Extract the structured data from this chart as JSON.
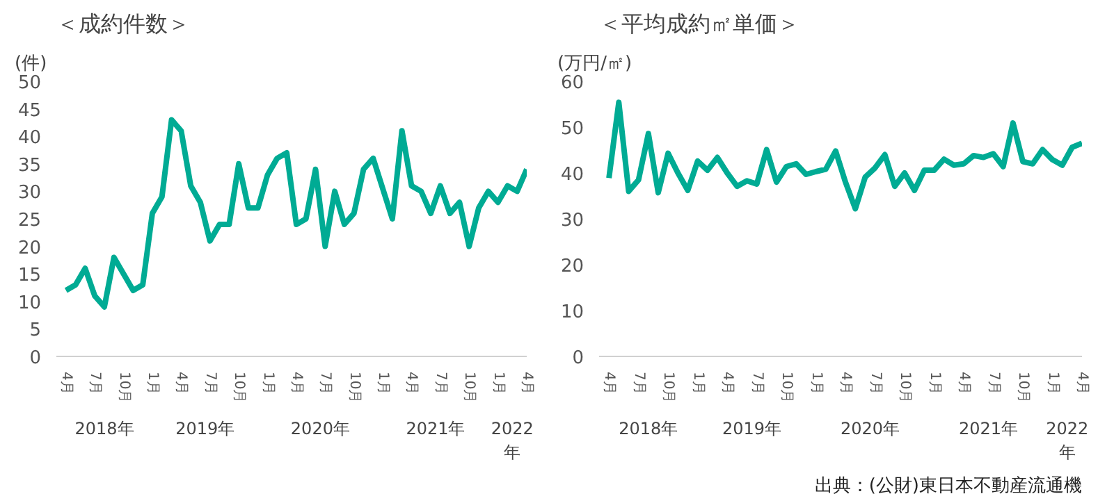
{
  "chart_data": [
    {
      "type": "line",
      "title": "＜成約件数＞",
      "ylabel": "(件)",
      "x": [
        "2018-04",
        "2018-05",
        "2018-06",
        "2018-07",
        "2018-08",
        "2018-09",
        "2018-10",
        "2018-11",
        "2018-12",
        "2019-01",
        "2019-02",
        "2019-03",
        "2019-04",
        "2019-05",
        "2019-06",
        "2019-07",
        "2019-08",
        "2019-09",
        "2019-10",
        "2019-11",
        "2019-12",
        "2020-01",
        "2020-02",
        "2020-03",
        "2020-04",
        "2020-05",
        "2020-06",
        "2020-07",
        "2020-08",
        "2020-09",
        "2020-10",
        "2020-11",
        "2020-12",
        "2021-01",
        "2021-02",
        "2021-03",
        "2021-04",
        "2021-05",
        "2021-06",
        "2021-07",
        "2021-08",
        "2021-09",
        "2021-10",
        "2021-11",
        "2021-12",
        "2022-01",
        "2022-02",
        "2022-03",
        "2022-04"
      ],
      "series": [
        {
          "color": "#00ab94",
          "values": [
            12,
            13,
            16,
            11,
            9,
            18,
            15,
            12,
            13,
            26,
            29,
            43,
            41,
            31,
            28,
            21,
            24,
            24,
            35,
            27,
            27,
            33,
            36,
            37,
            24,
            25,
            34,
            20,
            30,
            24,
            26,
            34,
            36,
            30.5,
            25,
            41,
            31,
            30,
            26,
            31,
            26,
            28,
            20,
            27,
            30,
            28,
            31,
            30,
            34
          ]
        }
      ],
      "xlim": [
        "2018-03",
        "2022-04"
      ],
      "ylim": [
        0,
        50
      ],
      "yticks": [
        0,
        5,
        10,
        15,
        20,
        25,
        30,
        35,
        40,
        45,
        50
      ],
      "xticks": [
        {
          "value": "2018-04",
          "label": "4月"
        },
        {
          "value": "2018-07",
          "label": "7月"
        },
        {
          "value": "2018-10",
          "label": "10月"
        },
        {
          "value": "2019-01",
          "label": "1月"
        },
        {
          "value": "2019-04",
          "label": "4月"
        },
        {
          "value": "2019-07",
          "label": "7月"
        },
        {
          "value": "2019-10",
          "label": "10月"
        },
        {
          "value": "2020-01",
          "label": "1月"
        },
        {
          "value": "2020-04",
          "label": "4月"
        },
        {
          "value": "2020-07",
          "label": "7月"
        },
        {
          "value": "2020-10",
          "label": "10月"
        },
        {
          "value": "2021-01",
          "label": "1月"
        },
        {
          "value": "2021-04",
          "label": "4月"
        },
        {
          "value": "2021-07",
          "label": "7月"
        },
        {
          "value": "2021-10",
          "label": "10月"
        },
        {
          "value": "2022-01",
          "label": "1月"
        },
        {
          "value": "2022-04",
          "label": "4月"
        }
      ],
      "annotations": [
        "2018年",
        "2019年",
        "2020年",
        "2021年",
        "2022年"
      ],
      "grid": false,
      "marker": "none",
      "line_style": "solid"
    },
    {
      "type": "line",
      "title": "＜平均成約㎡単価＞",
      "ylabel": "(万円/㎡)",
      "x": [
        "2018-04",
        "2018-05",
        "2018-06",
        "2018-07",
        "2018-08",
        "2018-09",
        "2018-10",
        "2018-11",
        "2018-12",
        "2019-01",
        "2019-02",
        "2019-03",
        "2019-04",
        "2019-05",
        "2019-06",
        "2019-07",
        "2019-08",
        "2019-09",
        "2019-10",
        "2019-11",
        "2019-12",
        "2020-01",
        "2020-02",
        "2020-03",
        "2020-04",
        "2020-05",
        "2020-06",
        "2020-07",
        "2020-08",
        "2020-09",
        "2020-10",
        "2020-11",
        "2020-12",
        "2021-01",
        "2021-02",
        "2021-03",
        "2021-04",
        "2021-05",
        "2021-06",
        "2021-07",
        "2021-08",
        "2021-09",
        "2021-10",
        "2021-11",
        "2021-12",
        "2022-01",
        "2022-02",
        "2022-03",
        "2022-04"
      ],
      "series": [
        {
          "color": "#00ab94",
          "values": [
            38.9,
            55.4,
            36,
            38.5,
            48.6,
            35.7,
            44.3,
            40,
            36.2,
            42.6,
            40.6,
            43.4,
            40,
            37.1,
            38.3,
            37.6,
            45.1,
            38,
            41.4,
            42,
            39.7,
            40.3,
            40.8,
            44.8,
            38,
            32.2,
            39.1,
            41.1,
            44,
            37.1,
            40,
            36.2,
            40.6,
            40.6,
            43,
            41.7,
            42,
            43.8,
            43.4,
            44.2,
            41.4,
            50.9,
            42.5,
            42,
            45.1,
            42.9,
            41.7,
            45.6,
            46.5
          ]
        }
      ],
      "xlim": [
        "2018-03",
        "2022-04"
      ],
      "ylim": [
        0,
        60
      ],
      "yticks": [
        0,
        10,
        20,
        30,
        40,
        50,
        60
      ],
      "xticks": [
        {
          "value": "2018-04",
          "label": "4月"
        },
        {
          "value": "2018-07",
          "label": "7月"
        },
        {
          "value": "2018-10",
          "label": "10月"
        },
        {
          "value": "2019-01",
          "label": "1月"
        },
        {
          "value": "2019-04",
          "label": "4月"
        },
        {
          "value": "2019-07",
          "label": "7月"
        },
        {
          "value": "2019-10",
          "label": "10月"
        },
        {
          "value": "2020-01",
          "label": "1月"
        },
        {
          "value": "2020-04",
          "label": "4月"
        },
        {
          "value": "2020-07",
          "label": "7月"
        },
        {
          "value": "2020-10",
          "label": "10月"
        },
        {
          "value": "2021-01",
          "label": "1月"
        },
        {
          "value": "2021-04",
          "label": "4月"
        },
        {
          "value": "2021-07",
          "label": "7月"
        },
        {
          "value": "2021-10",
          "label": "10月"
        },
        {
          "value": "2022-01",
          "label": "1月"
        },
        {
          "value": "2022-04",
          "label": "4月"
        }
      ],
      "annotations": [
        "2018年",
        "2019年",
        "2020年",
        "2021年",
        "2022年",
        "出典：(公財)東日本不動産流通機"
      ],
      "grid": false,
      "marker": "none",
      "line_style": "solid"
    }
  ]
}
